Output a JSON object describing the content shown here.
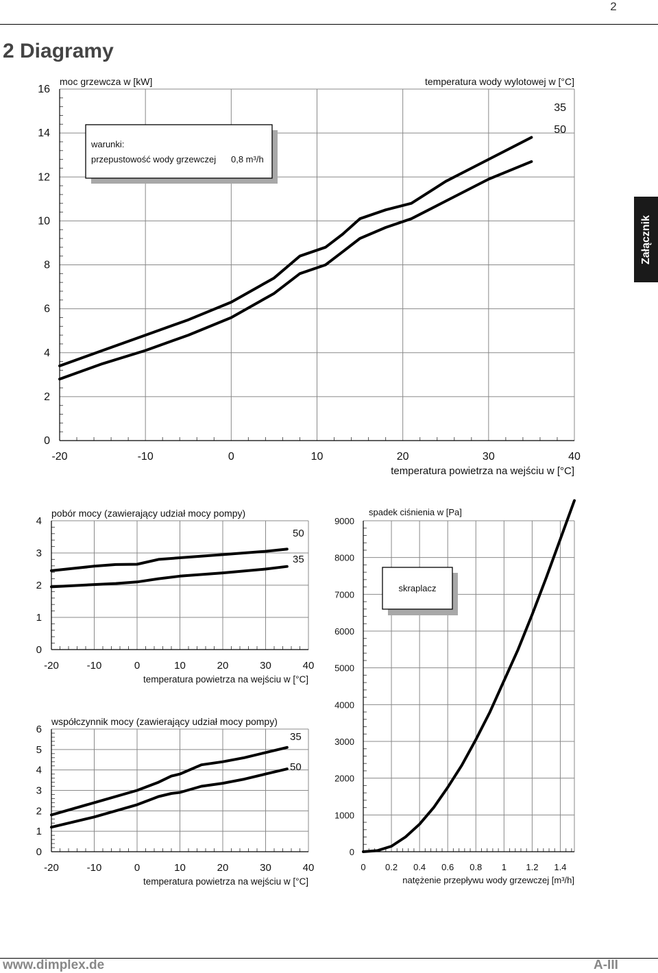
{
  "page": {
    "number": "2",
    "section_title": "2 Diagramy",
    "side_tab": "Załącznik",
    "footer_url": "www.dimplex.de",
    "footer_page": "A-III"
  },
  "chart_data": [
    {
      "id": "heating-capacity",
      "type": "line",
      "ylabel": "moc grzewcza w [kW]",
      "xlabel": "temperatura powietrza na wejściu w [°C]",
      "legend_title": "temperatura wody wylotowej w [°C]",
      "xlim": [
        -20,
        40
      ],
      "ylim": [
        0,
        16
      ],
      "xticks": [
        "-20",
        "-10",
        "0",
        "10",
        "20",
        "30",
        "40"
      ],
      "yticks": [
        "0",
        "2",
        "4",
        "6",
        "8",
        "10",
        "12",
        "14",
        "16"
      ],
      "conditions_box": {
        "title": "warunki:",
        "label": "przepustowość wody grzewczej",
        "value": "0,8 m³/h"
      },
      "series": [
        {
          "name": "35",
          "x": [
            -20,
            -15,
            -10,
            -5,
            0,
            5,
            8,
            11,
            13,
            15,
            18,
            21,
            25,
            30,
            35
          ],
          "y": [
            3.4,
            4.1,
            4.8,
            5.5,
            6.3,
            7.4,
            8.4,
            8.8,
            9.4,
            10.1,
            10.5,
            10.8,
            11.8,
            12.8,
            13.8
          ]
        },
        {
          "name": "50",
          "x": [
            -20,
            -15,
            -10,
            -5,
            0,
            5,
            8,
            11,
            13,
            15,
            18,
            21,
            25,
            30,
            35
          ],
          "y": [
            2.8,
            3.5,
            4.1,
            4.8,
            5.6,
            6.7,
            7.6,
            8.0,
            8.6,
            9.2,
            9.7,
            10.1,
            10.9,
            11.9,
            12.7
          ]
        }
      ]
    },
    {
      "id": "power-consumption",
      "type": "line",
      "ylabel": "pobór mocy (zawierający udział mocy pompy)",
      "xlabel": "temperatura powietrza na wejściu w [°C]",
      "xlim": [
        -20,
        40
      ],
      "ylim": [
        0,
        4
      ],
      "xticks": [
        "-20",
        "-10",
        "0",
        "10",
        "20",
        "30",
        "40"
      ],
      "yticks": [
        "0",
        "1",
        "2",
        "3",
        "4"
      ],
      "series": [
        {
          "name": "50",
          "x": [
            -20,
            -10,
            -5,
            0,
            5,
            10,
            20,
            30,
            35
          ],
          "y": [
            2.45,
            2.59,
            2.64,
            2.65,
            2.8,
            2.85,
            2.95,
            3.05,
            3.12
          ]
        },
        {
          "name": "35",
          "x": [
            -20,
            -10,
            -5,
            0,
            5,
            10,
            20,
            30,
            35
          ],
          "y": [
            1.95,
            2.02,
            2.05,
            2.1,
            2.2,
            2.28,
            2.38,
            2.5,
            2.58
          ]
        }
      ]
    },
    {
      "id": "cop",
      "type": "line",
      "ylabel": "współczynnik mocy (zawierający udział mocy pompy)",
      "xlabel": "temperatura powietrza na wejściu w [°C]",
      "xlim": [
        -20,
        40
      ],
      "ylim": [
        0,
        6
      ],
      "xticks": [
        "-20",
        "-10",
        "0",
        "10",
        "20",
        "30",
        "40"
      ],
      "yticks": [
        "0",
        "1",
        "2",
        "3",
        "4",
        "5",
        "6"
      ],
      "series": [
        {
          "name": "35",
          "x": [
            -20,
            -10,
            0,
            5,
            8,
            10,
            15,
            20,
            25,
            30,
            35
          ],
          "y": [
            1.8,
            2.4,
            3.0,
            3.4,
            3.7,
            3.8,
            4.25,
            4.4,
            4.6,
            4.85,
            5.1
          ]
        },
        {
          "name": "50",
          "x": [
            -20,
            -10,
            0,
            5,
            8,
            10,
            15,
            20,
            25,
            30,
            35
          ],
          "y": [
            1.2,
            1.7,
            2.3,
            2.7,
            2.85,
            2.9,
            3.2,
            3.35,
            3.55,
            3.8,
            4.05
          ]
        }
      ]
    },
    {
      "id": "pressure-drop",
      "type": "line",
      "ylabel": "spadek ciśnienia w [Pa]",
      "xlabel": "natężenie przepływu wody grzewczej [m³/h]",
      "xlim": [
        0,
        1.5
      ],
      "ylim": [
        0,
        9000
      ],
      "xticks": [
        "0",
        "0.2",
        "0.4",
        "0.6",
        "0.8",
        "1",
        "1.2",
        "1.4"
      ],
      "yticks": [
        "0",
        "1000",
        "2000",
        "3000",
        "4000",
        "5000",
        "6000",
        "7000",
        "8000",
        "9000"
      ],
      "box_label": "skraplacz",
      "series": [
        {
          "name": "skraplacz",
          "x": [
            0,
            0.1,
            0.2,
            0.3,
            0.4,
            0.5,
            0.6,
            0.7,
            0.8,
            0.9,
            1.0,
            1.1,
            1.2,
            1.3,
            1.4,
            1.5
          ],
          "y": [
            0,
            30,
            150,
            400,
            750,
            1200,
            1750,
            2350,
            3050,
            3800,
            4650,
            5500,
            6450,
            7450,
            8500,
            9550
          ]
        }
      ]
    }
  ]
}
